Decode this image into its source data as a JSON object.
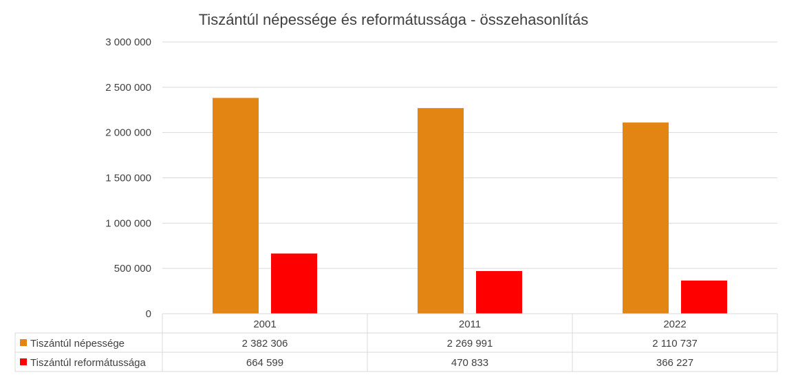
{
  "chart_data": {
    "type": "bar",
    "title": "Tiszántúl népessége és reformátussága - összehasonlítás",
    "categories": [
      "2001",
      "2011",
      "2022"
    ],
    "series": [
      {
        "name": "Tiszántúl népessége",
        "values": [
          2382306,
          2269991,
          2110737
        ],
        "color": "#E38512"
      },
      {
        "name": "Tiszántúl reformátussága",
        "values": [
          664599,
          470833,
          366227
        ],
        "color": "#FF0000"
      }
    ],
    "value_labels": [
      [
        "2 382 306",
        "2 269 991",
        "2 110 737"
      ],
      [
        "664 599",
        "470 833",
        "366 227"
      ]
    ],
    "yticks": [
      0,
      500000,
      1000000,
      1500000,
      2000000,
      2500000,
      3000000
    ],
    "ytick_labels": [
      "0",
      "500 000",
      "1 000 000",
      "1 500 000",
      "2 000 000",
      "2 500 000",
      "3 000 000"
    ],
    "ylim": [
      0,
      3000000
    ],
    "grid": true,
    "legend": "data-table",
    "gridline_color": "#D9D9D9",
    "text_color": "#404040"
  }
}
